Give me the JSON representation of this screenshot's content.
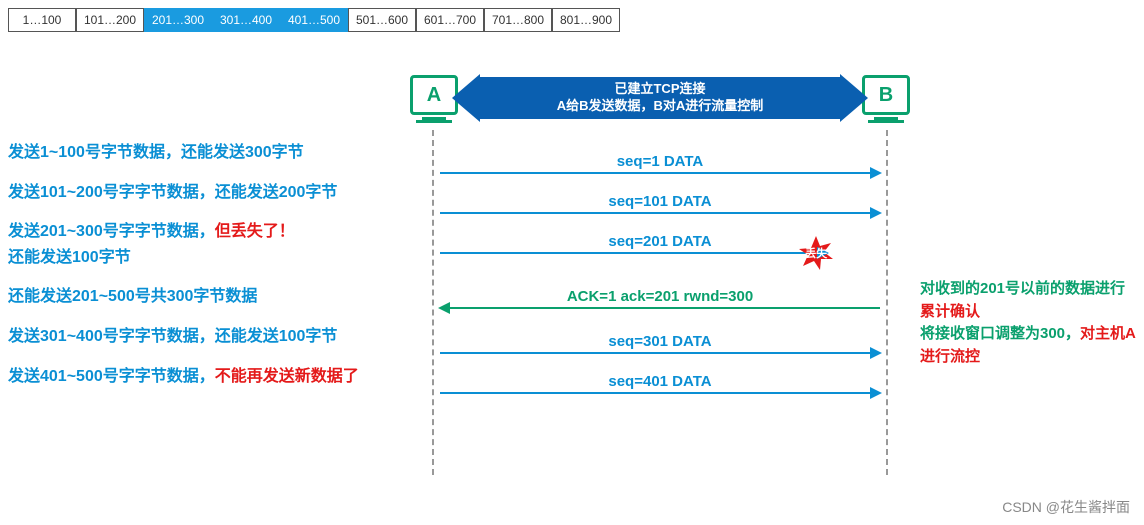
{
  "buffer": {
    "cells": [
      {
        "label": "1…100",
        "hl": false
      },
      {
        "label": "101…200",
        "hl": false
      },
      {
        "label": "201…300",
        "hl": true
      },
      {
        "label": "301…400",
        "hl": true
      },
      {
        "label": "401…500",
        "hl": true
      },
      {
        "label": "501…600",
        "hl": false
      },
      {
        "label": "601…700",
        "hl": false
      },
      {
        "label": "701…800",
        "hl": false
      },
      {
        "label": "801…900",
        "hl": false
      }
    ],
    "highlight_color": "#1a9be0",
    "border_color": "#555555"
  },
  "left_notes": [
    [
      {
        "t": "发送1~100号字节数据，还能发送300字节",
        "c": "blue"
      }
    ],
    [
      {
        "t": "发送101~200号字字节数据，还能发送200字节",
        "c": "blue"
      }
    ],
    [
      {
        "t": "发送201~300号字字节数据，",
        "c": "blue"
      },
      {
        "t": "但丢失了！",
        "c": "red"
      },
      {
        "t": "\n还能发送100字节",
        "c": "blue"
      }
    ],
    [
      {
        "t": "还能发送201~500号共300字节数据",
        "c": "blue"
      }
    ],
    [
      {
        "t": "发送301~400号字字节数据，还能发送100字节",
        "c": "blue"
      }
    ],
    [
      {
        "t": "发送401~500号字字节数据，",
        "c": "blue"
      },
      {
        "t": "不能再发送新数据了",
        "c": "red"
      }
    ]
  ],
  "hosts": {
    "A": "A",
    "B": "B",
    "host_color": "#0aa06d"
  },
  "banner": {
    "line1": "已建立TCP连接",
    "line2": "A给B发送数据，B对A进行流量控制",
    "bg": "#0a5fb0"
  },
  "messages": [
    {
      "cls": "m1",
      "dir": "right",
      "color": "blue",
      "text": "seq=1   DATA",
      "lost": false
    },
    {
      "cls": "m2",
      "dir": "right",
      "color": "blue",
      "text": "seq=101   DATA",
      "lost": false
    },
    {
      "cls": "m3",
      "dir": "right",
      "color": "blue",
      "text": "seq=201   DATA",
      "lost": true,
      "lost_label": "丢失"
    },
    {
      "cls": "m4",
      "dir": "left",
      "color": "green",
      "text": "ACK=1   ack=201   rwnd=300",
      "lost": false
    },
    {
      "cls": "m5",
      "dir": "right",
      "color": "blue",
      "text": "seq=301   DATA",
      "lost": false
    },
    {
      "cls": "m6",
      "dir": "right",
      "color": "blue",
      "text": "seq=401   DATA",
      "lost": false
    }
  ],
  "right_notes": [
    [
      {
        "t": "对收到的201号以前的数据进行",
        "c": "green"
      },
      {
        "t": "累计确认",
        "c": "red"
      }
    ],
    [
      {
        "t": "将接收窗口调整为300，",
        "c": "green"
      },
      {
        "t": "对主机A进行流控",
        "c": "red"
      }
    ]
  ],
  "watermark": "CSDN @花生酱拌面",
  "colors": {
    "blue": "#0a8fd4",
    "red": "#e41a1a",
    "green": "#0aa06d",
    "lost_star": "#e41a1a",
    "background": "#ffffff"
  }
}
